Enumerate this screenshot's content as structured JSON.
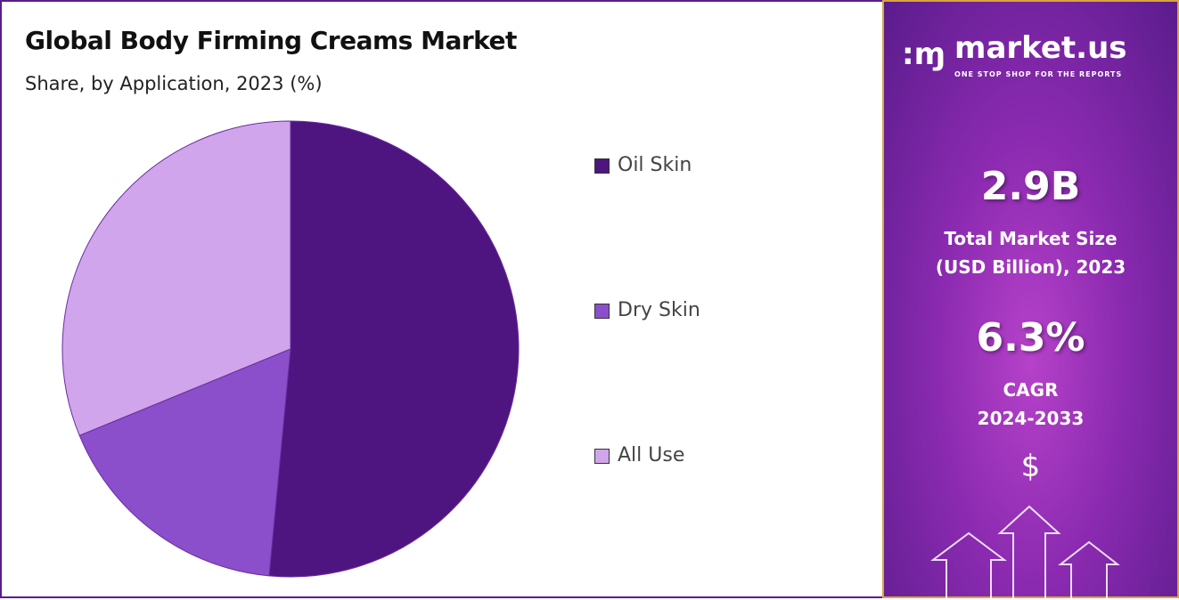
{
  "chart_data": {
    "type": "pie",
    "title": "Global Body Firming Creams Market",
    "subtitle": "Share, by Application, 2023 (%)",
    "categories": [
      "Oil Skin",
      "Dry Skin",
      "All Use"
    ],
    "values": [
      51.5,
      17.3,
      31.2
    ],
    "colors": [
      "#4e1580",
      "#8b4fcb",
      "#d0a5eb"
    ],
    "legend_position": "right"
  },
  "panel": {
    "brand": "market.us",
    "tagline": "ONE STOP SHOP FOR THE REPORTS",
    "market_size": "2.9B",
    "market_size_label_1": "Total Market Size",
    "market_size_label_2": "(USD Billion), 2023",
    "cagr": "6.3%",
    "cagr_label_1": "CAGR",
    "cagr_label_2": "2024-2033",
    "dollar": "$"
  }
}
